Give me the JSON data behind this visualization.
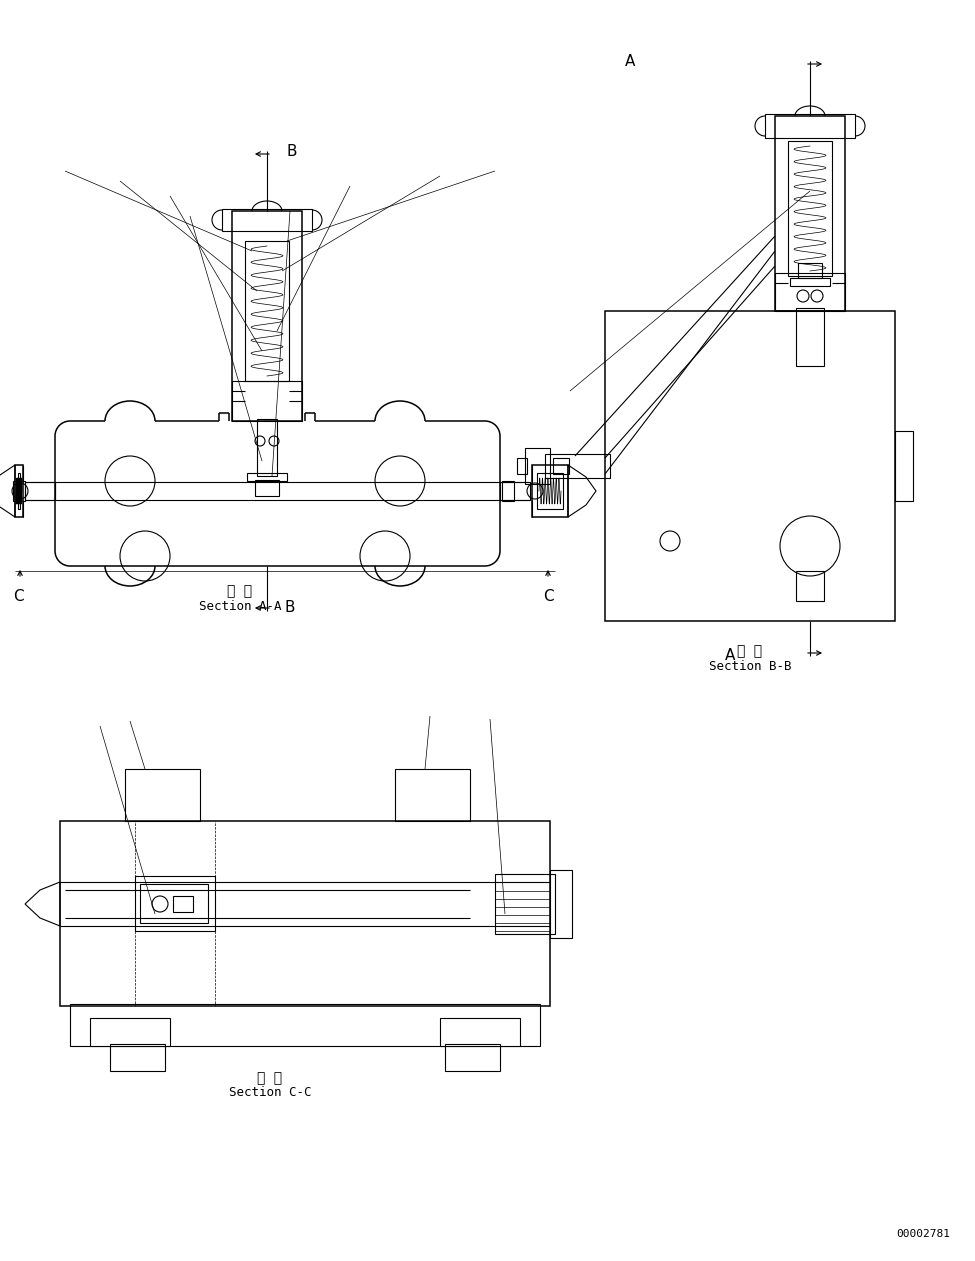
{
  "bg": "#ffffff",
  "lc": "#000000",
  "lw": 0.8,
  "tlw": 0.5,
  "thklw": 1.1,
  "section_AA_line1": "断 面",
  "section_AA_line2": "Section A-A",
  "section_BB_line1": "断 面",
  "section_BB_line2": "Section B-B",
  "section_CC_line1": "断 面",
  "section_CC_line2": "Section C-C",
  "doc_number": "00002781",
  "label_A": "A",
  "label_B": "B",
  "label_C": "C"
}
